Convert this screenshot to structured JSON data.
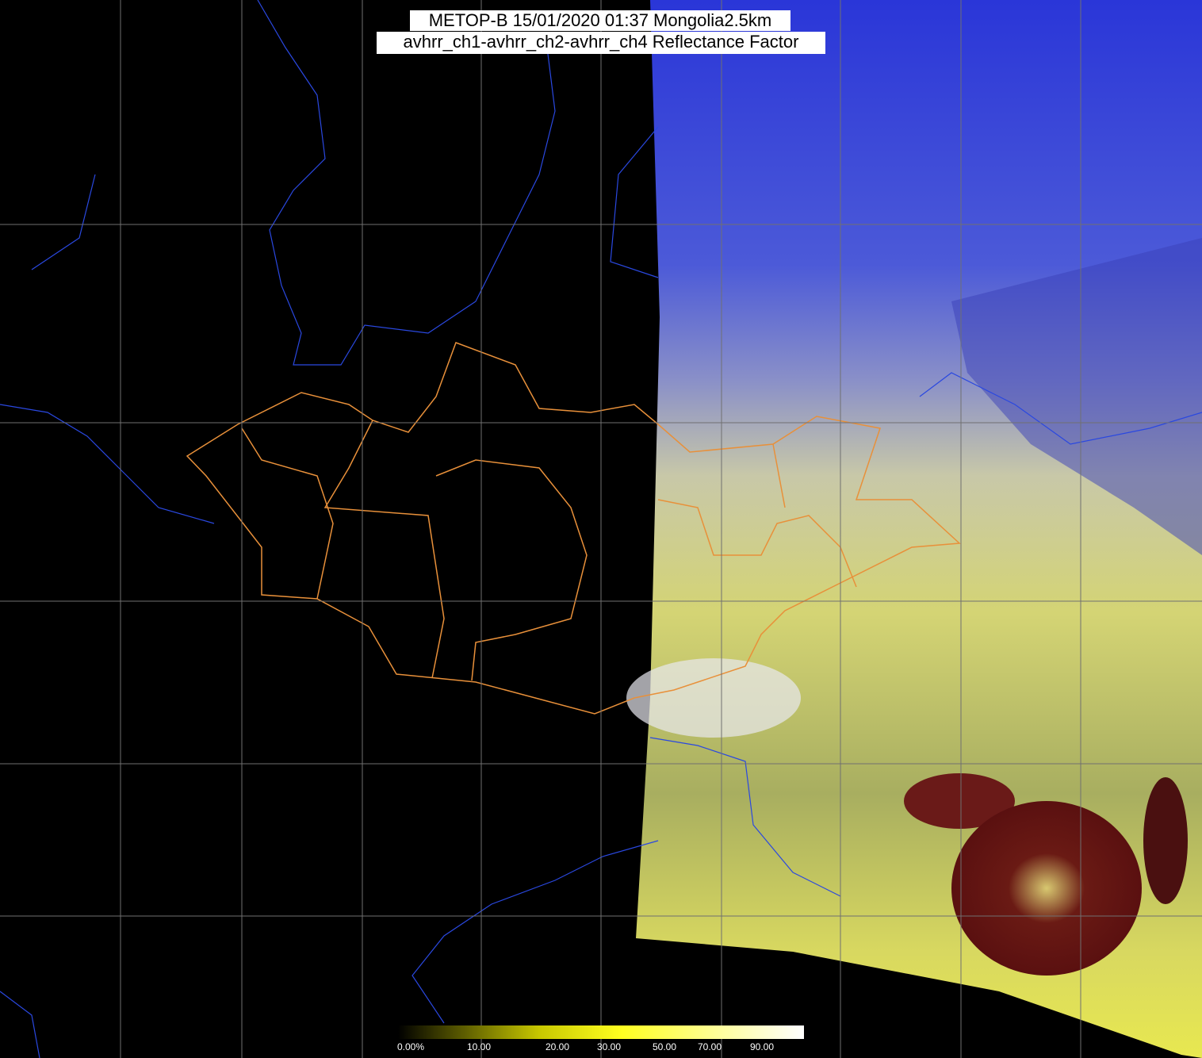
{
  "header": {
    "title": "METOP-B 15/01/2020 01:37 Mongolia2.5km",
    "subtitle": "avhrr_ch1-avhrr_ch2-avhrr_ch4 Reflectance Factor"
  },
  "legend": {
    "labels": [
      "0.00%",
      "10.00",
      "20.00",
      "30.00",
      "50.00",
      "70.00",
      "90.00"
    ]
  }
}
